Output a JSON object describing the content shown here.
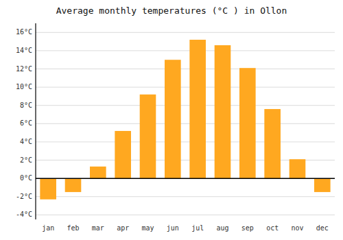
{
  "chart_data": {
    "type": "bar",
    "title": "Average monthly temperatures (°C ) in Ollon",
    "categories": [
      "jan",
      "feb",
      "mar",
      "apr",
      "may",
      "jun",
      "jul",
      "aug",
      "sep",
      "oct",
      "nov",
      "dec"
    ],
    "values": [
      -2.3,
      -1.5,
      1.3,
      5.2,
      9.2,
      13.0,
      15.2,
      14.6,
      12.1,
      7.6,
      2.1,
      -1.5
    ],
    "color": "#FFA820",
    "ylim": [
      -4.5,
      17
    ],
    "yticks": [
      {
        "value": -4,
        "label": "-4°C"
      },
      {
        "value": -2,
        "label": "-2°C"
      },
      {
        "value": 0,
        "label": "0°C"
      },
      {
        "value": 2,
        "label": "2°C"
      },
      {
        "value": 4,
        "label": "4°C"
      },
      {
        "value": 6,
        "label": "6°C"
      },
      {
        "value": 8,
        "label": "8°C"
      },
      {
        "value": 10,
        "label": "10°C"
      },
      {
        "value": 12,
        "label": "12°C"
      },
      {
        "value": 14,
        "label": "14°C"
      },
      {
        "value": 16,
        "label": "16°C"
      }
    ],
    "grid": true
  }
}
